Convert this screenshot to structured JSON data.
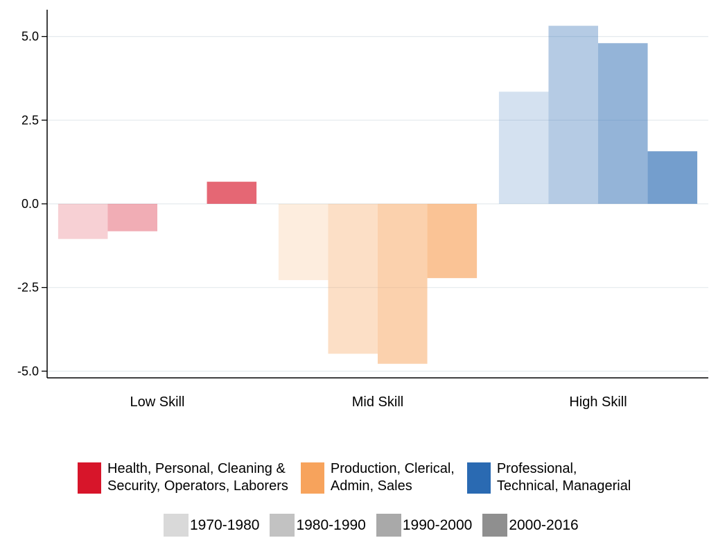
{
  "chart_data": {
    "type": "bar",
    "categories": [
      "Low Skill",
      "Mid Skill",
      "High Skill"
    ],
    "series": [
      {
        "name": "1970-1980",
        "values": [
          -1.05,
          -2.28,
          3.35
        ]
      },
      {
        "name": "1980-1990",
        "values": [
          -0.82,
          -4.48,
          5.32
        ]
      },
      {
        "name": "1990-2000",
        "values": [
          0.0,
          -4.78,
          4.8
        ]
      },
      {
        "name": "2000-2016",
        "values": [
          0.66,
          -2.22,
          1.57
        ]
      }
    ],
    "title": "",
    "xlabel": "",
    "ylabel": "",
    "ylim": [
      -5.2,
      5.8
    ],
    "yticks": [
      {
        "value": 5.0,
        "label": "5.0"
      },
      {
        "value": 2.5,
        "label": "2.5"
      },
      {
        "value": 0.0,
        "label": "0.0"
      },
      {
        "value": -2.5,
        "label": "-2.5"
      },
      {
        "value": -5.0,
        "label": "-5.0"
      }
    ],
    "grid": true,
    "category_colors": [
      "#d7152a",
      "#f7a35c",
      "#2a6ab2"
    ],
    "series_opacity": [
      0.2,
      0.35,
      0.5,
      0.65
    ],
    "legend": {
      "placement": "bottom",
      "groups": [
        {
          "label": "Health, Personal, Cleaning &\nSecurity, Operators, Laborers",
          "color": "#d7152a"
        },
        {
          "label": "Production, Clerical,\nAdmin, Sales",
          "color": "#f7a35c"
        },
        {
          "label": "Professional,\nTechnical, Managerial",
          "color": "#2a6ab2"
        }
      ],
      "periods": [
        {
          "label": "1970-1980",
          "color": "#d9d9d9"
        },
        {
          "label": "1980-1990",
          "color": "#c2c2c2"
        },
        {
          "label": "1990-2000",
          "color": "#a9a9a9"
        },
        {
          "label": "2000-2016",
          "color": "#8f8f8f"
        }
      ]
    }
  }
}
